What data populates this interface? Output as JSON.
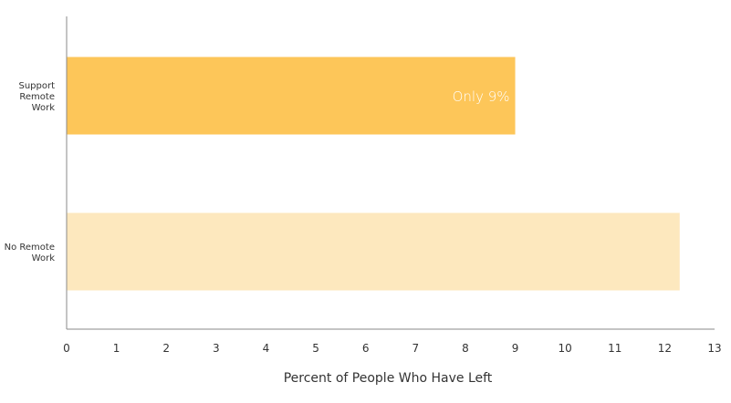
{
  "chart_data": {
    "type": "bar",
    "orientation": "horizontal",
    "categories": [
      "Support Remote Work",
      "No Remote Work"
    ],
    "category_label_lines": [
      [
        "Support",
        "Remote",
        "Work"
      ],
      [
        "No Remote",
        "Work"
      ]
    ],
    "values": [
      9.0,
      12.3
    ],
    "colors": [
      "#FDC659",
      "#FDE8BE"
    ],
    "annotations": [
      {
        "category_index": 0,
        "text": "Only 9%"
      }
    ],
    "xlabel": "Percent of People Who Have Left",
    "ylabel": "",
    "xlim": [
      0,
      13
    ],
    "x_ticks": [
      0,
      1,
      2,
      3,
      4,
      5,
      6,
      7,
      8,
      9,
      10,
      11,
      12,
      13
    ],
    "grid": false,
    "legend": "none"
  }
}
